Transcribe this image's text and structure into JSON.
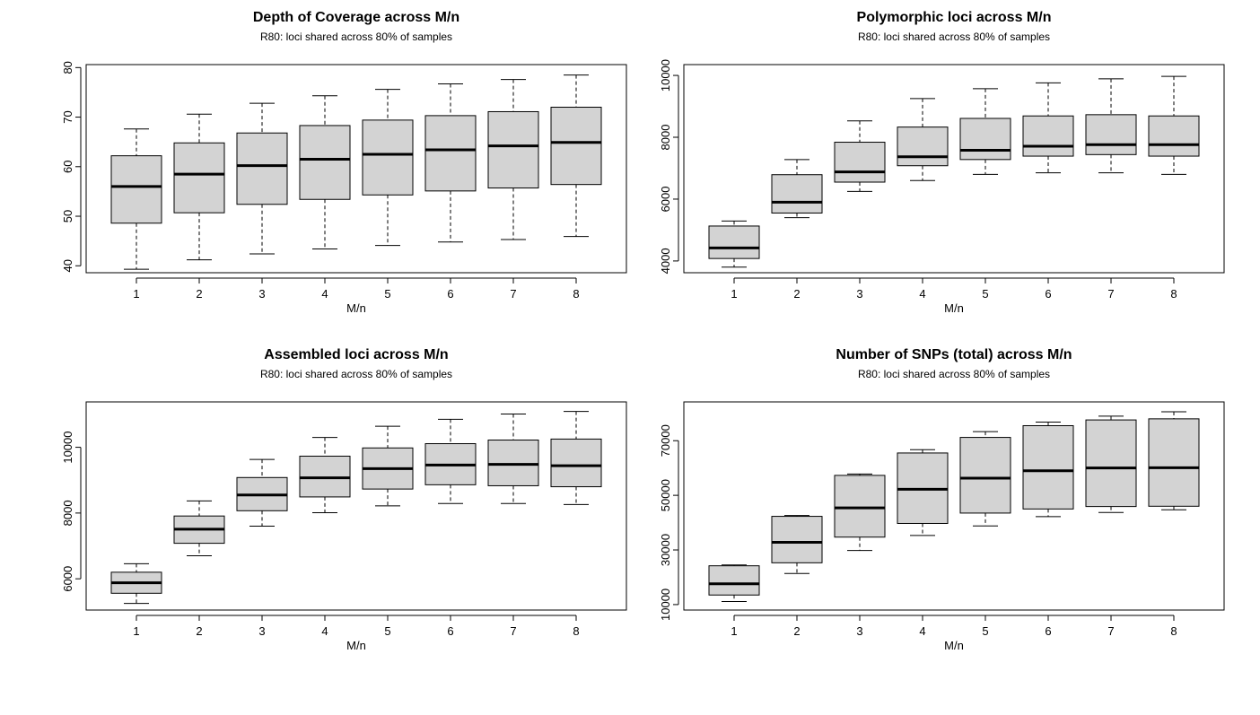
{
  "chart_data": [
    {
      "type": "box",
      "title": "Depth of Coverage across M/n",
      "subtitle": "R80: loci shared across 80% of samples",
      "xlabel": "M/n",
      "ylabel": "",
      "categories": [
        "1",
        "2",
        "3",
        "4",
        "5",
        "6",
        "7",
        "8"
      ],
      "ylim": [
        38.6,
        80.6
      ],
      "yticks": [
        "40",
        "50",
        "60",
        "70",
        "80"
      ],
      "boxes": [
        {
          "min": 39.3,
          "q1": 48.6,
          "median": 56.0,
          "q3": 62.2,
          "max": 67.6
        },
        {
          "min": 41.2,
          "q1": 50.7,
          "median": 58.5,
          "q3": 64.8,
          "max": 70.6
        },
        {
          "min": 42.4,
          "q1": 52.4,
          "median": 60.2,
          "q3": 66.8,
          "max": 72.8
        },
        {
          "min": 43.4,
          "q1": 53.4,
          "median": 61.5,
          "q3": 68.3,
          "max": 74.3
        },
        {
          "min": 44.1,
          "q1": 54.3,
          "median": 62.5,
          "q3": 69.4,
          "max": 75.6
        },
        {
          "min": 44.8,
          "q1": 55.1,
          "median": 63.4,
          "q3": 70.3,
          "max": 76.7
        },
        {
          "min": 45.3,
          "q1": 55.7,
          "median": 64.2,
          "q3": 71.1,
          "max": 77.6
        },
        {
          "min": 45.9,
          "q1": 56.4,
          "median": 64.9,
          "q3": 72.0,
          "max": 78.5
        }
      ]
    },
    {
      "type": "box",
      "title": "Polymorphic loci across M/n",
      "subtitle": "R80: loci shared across 80% of samples",
      "xlabel": "M/n",
      "ylabel": "",
      "categories": [
        "1",
        "2",
        "3",
        "4",
        "5",
        "6",
        "7",
        "8"
      ],
      "ylim": [
        3620,
        10350
      ],
      "yticks": [
        "4000",
        "6000",
        "8000",
        "10000"
      ],
      "boxes": [
        {
          "min": 3800,
          "q1": 4080,
          "median": 4420,
          "q3": 5130,
          "max": 5290
        },
        {
          "min": 5400,
          "q1": 5550,
          "median": 5900,
          "q3": 6790,
          "max": 7280
        },
        {
          "min": 6250,
          "q1": 6550,
          "median": 6880,
          "q3": 7840,
          "max": 8530
        },
        {
          "min": 6600,
          "q1": 7080,
          "median": 7370,
          "q3": 8330,
          "max": 9250
        },
        {
          "min": 6800,
          "q1": 7280,
          "median": 7580,
          "q3": 8610,
          "max": 9570
        },
        {
          "min": 6850,
          "q1": 7390,
          "median": 7710,
          "q3": 8690,
          "max": 9760
        },
        {
          "min": 6850,
          "q1": 7440,
          "median": 7760,
          "q3": 8730,
          "max": 9890
        },
        {
          "min": 6800,
          "q1": 7390,
          "median": 7760,
          "q3": 8690,
          "max": 9970
        }
      ]
    },
    {
      "type": "box",
      "title": "Assembled loci across M/n",
      "subtitle": "R80: loci shared across 80% of samples",
      "xlabel": "M/n",
      "ylabel": "",
      "categories": [
        "1",
        "2",
        "3",
        "4",
        "5",
        "6",
        "7",
        "8"
      ],
      "ylim": [
        5050,
        11380
      ],
      "yticks": [
        "6000",
        "8000",
        "10000"
      ],
      "boxes": [
        {
          "min": 5250,
          "q1": 5560,
          "median": 5880,
          "q3": 6200,
          "max": 6460
        },
        {
          "min": 6700,
          "q1": 7080,
          "median": 7510,
          "q3": 7910,
          "max": 8370
        },
        {
          "min": 7600,
          "q1": 8070,
          "median": 8550,
          "q3": 9080,
          "max": 9630
        },
        {
          "min": 8010,
          "q1": 8490,
          "median": 9070,
          "q3": 9730,
          "max": 10300
        },
        {
          "min": 8220,
          "q1": 8730,
          "median": 9350,
          "q3": 9980,
          "max": 10640
        },
        {
          "min": 8290,
          "q1": 8860,
          "median": 9460,
          "q3": 10110,
          "max": 10850
        },
        {
          "min": 8290,
          "q1": 8830,
          "median": 9480,
          "q3": 10220,
          "max": 11010
        },
        {
          "min": 8260,
          "q1": 8800,
          "median": 9440,
          "q3": 10250,
          "max": 11090
        }
      ]
    },
    {
      "type": "box",
      "title": "Number of SNPs (total) across M/n",
      "subtitle": "R80: loci shared across 80% of samples",
      "xlabel": "M/n",
      "ylabel": "",
      "categories": [
        "1",
        "2",
        "3",
        "4",
        "5",
        "6",
        "7",
        "8"
      ],
      "ylim": [
        8000,
        84200
      ],
      "yticks": [
        "10000",
        "30000",
        "50000",
        "70000"
      ],
      "boxes": [
        {
          "min": 11100,
          "q1": 13500,
          "median": 17600,
          "q3": 24200,
          "max": 24500
        },
        {
          "min": 21400,
          "q1": 25300,
          "median": 32800,
          "q3": 42300,
          "max": 42600
        },
        {
          "min": 29800,
          "q1": 34700,
          "median": 45400,
          "q3": 57300,
          "max": 57800
        },
        {
          "min": 35300,
          "q1": 39700,
          "median": 52200,
          "q3": 65500,
          "max": 66700
        },
        {
          "min": 38800,
          "q1": 43500,
          "median": 56300,
          "q3": 71200,
          "max": 73300
        },
        {
          "min": 42200,
          "q1": 45000,
          "median": 59000,
          "q3": 75500,
          "max": 76800
        },
        {
          "min": 43700,
          "q1": 45900,
          "median": 60000,
          "q3": 77600,
          "max": 79000
        },
        {
          "min": 44700,
          "q1": 46000,
          "median": 60100,
          "q3": 78000,
          "max": 80600
        }
      ]
    }
  ]
}
